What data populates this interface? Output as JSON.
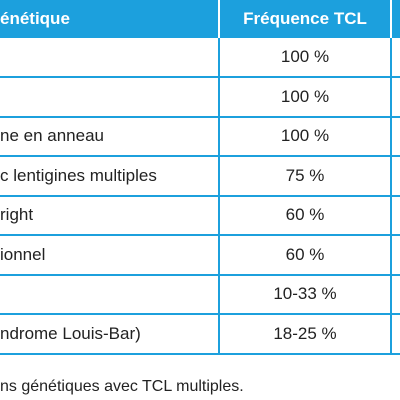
{
  "table": {
    "header": [
      "énétique",
      "Fréquence TCL"
    ],
    "rows": [
      {
        "frequence": "100 %"
      },
      {
        "frequence": "100 %"
      },
      {
        "label": "ne en anneau",
        "frequence": "100 %"
      },
      {
        "label": "c lentigines multiples",
        "frequence": "75 %"
      },
      {
        "label": "right",
        "frequence": "60 %"
      },
      {
        "label": "ionnel",
        "frequence": "60 %"
      },
      {
        "frequence": "10-33 %"
      },
      {
        "label": "ndrome Louis-Bar)",
        "frequence": "18-25 %"
      }
    ]
  },
  "caption": "ns génétiques avec TCL multiples."
}
